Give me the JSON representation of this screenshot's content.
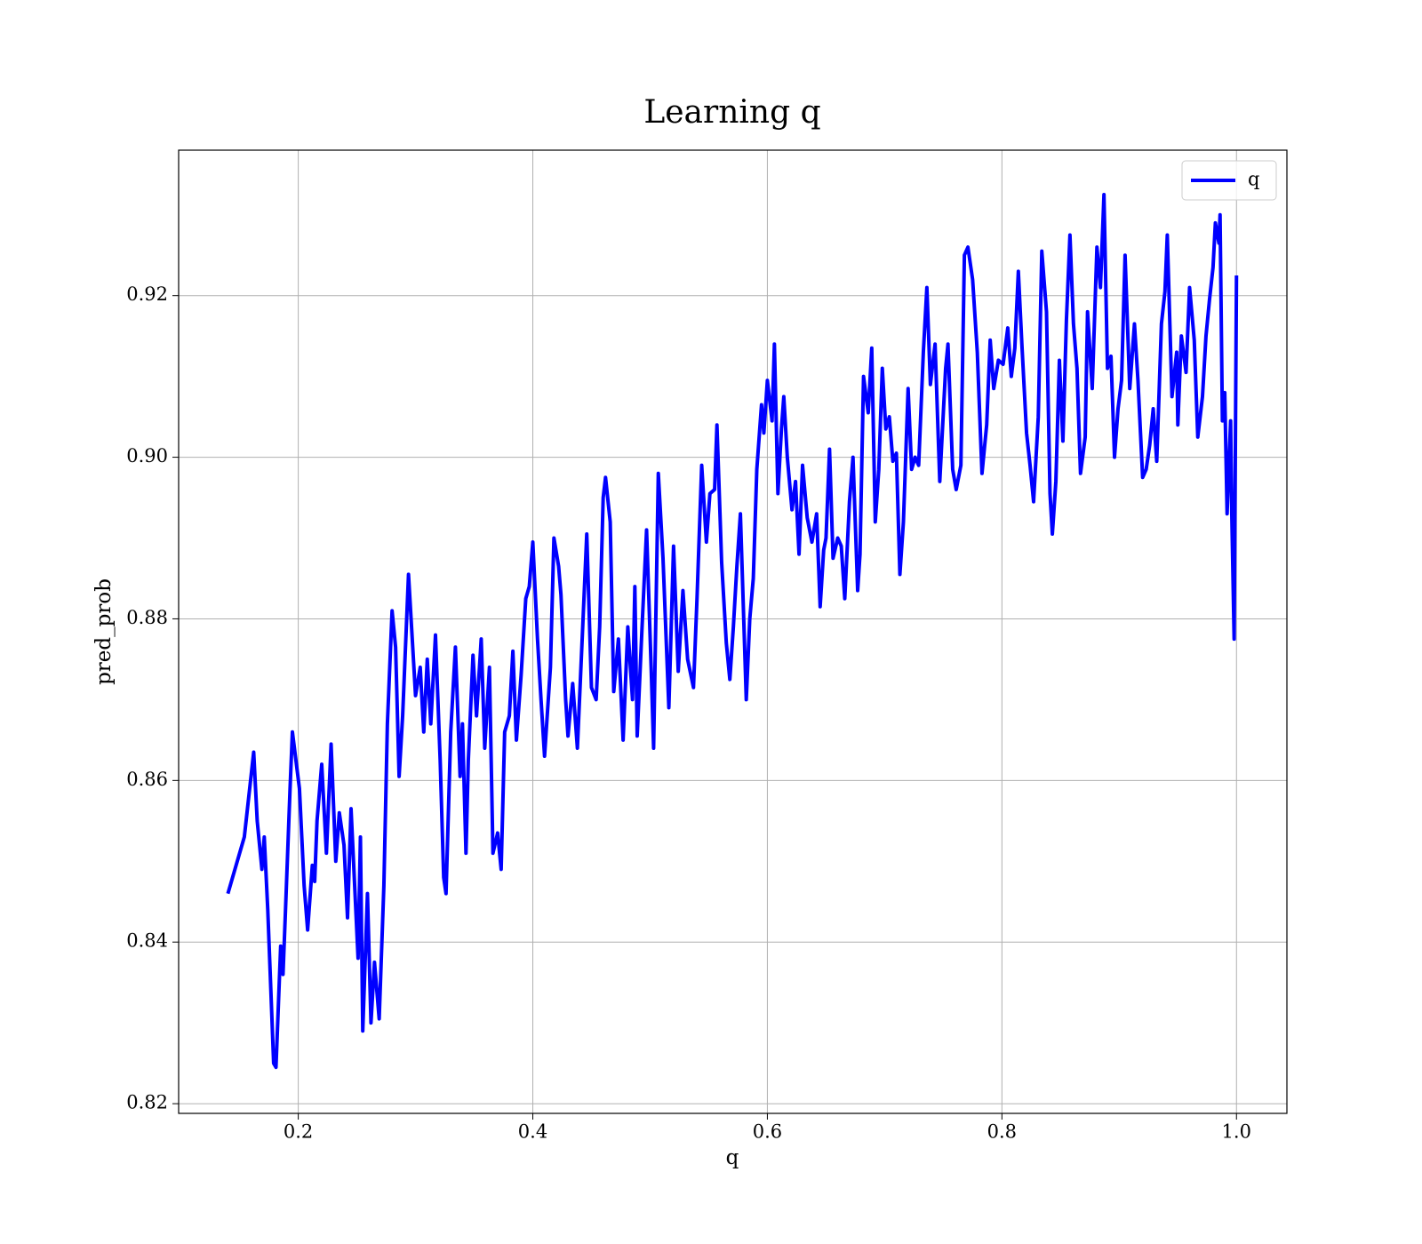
{
  "chart_data": {
    "type": "line",
    "title": "Learning q",
    "xlabel": "q",
    "ylabel": "pred_prob",
    "x": [
      0.14,
      0.154,
      0.162,
      0.165,
      0.169,
      0.171,
      0.174,
      0.179,
      0.181,
      0.185,
      0.187,
      0.189,
      0.193,
      0.195,
      0.201,
      0.205,
      0.208,
      0.212,
      0.214,
      0.216,
      0.22,
      0.224,
      0.228,
      0.232,
      0.235,
      0.239,
      0.242,
      0.245,
      0.251,
      0.253,
      0.255,
      0.259,
      0.262,
      0.265,
      0.269,
      0.273,
      0.276,
      0.28,
      0.283,
      0.286,
      0.289,
      0.294,
      0.296,
      0.3,
      0.304,
      0.307,
      0.31,
      0.313,
      0.317,
      0.321,
      0.324,
      0.326,
      0.33,
      0.334,
      0.338,
      0.34,
      0.343,
      0.345,
      0.349,
      0.352,
      0.356,
      0.359,
      0.363,
      0.366,
      0.37,
      0.373,
      0.376,
      0.38,
      0.383,
      0.386,
      0.39,
      0.394,
      0.397,
      0.4,
      0.404,
      0.407,
      0.41,
      0.415,
      0.418,
      0.422,
      0.424,
      0.428,
      0.43,
      0.434,
      0.438,
      0.443,
      0.446,
      0.45,
      0.454,
      0.457,
      0.46,
      0.462,
      0.466,
      0.469,
      0.473,
      0.477,
      0.481,
      0.485,
      0.487,
      0.489,
      0.493,
      0.497,
      0.501,
      0.503,
      0.507,
      0.511,
      0.516,
      0.52,
      0.524,
      0.528,
      0.532,
      0.537,
      0.54,
      0.544,
      0.548,
      0.551,
      0.555,
      0.557,
      0.561,
      0.565,
      0.568,
      0.571,
      0.574,
      0.577,
      0.582,
      0.585,
      0.588,
      0.591,
      0.595,
      0.597,
      0.6,
      0.604,
      0.606,
      0.609,
      0.612,
      0.614,
      0.617,
      0.621,
      0.624,
      0.627,
      0.63,
      0.634,
      0.638,
      0.642,
      0.645,
      0.648,
      0.65,
      0.653,
      0.656,
      0.66,
      0.663,
      0.666,
      0.67,
      0.673,
      0.677,
      0.679,
      0.682,
      0.686,
      0.689,
      0.692,
      0.695,
      0.698,
      0.701,
      0.704,
      0.707,
      0.71,
      0.713,
      0.716,
      0.72,
      0.723,
      0.726,
      0.729,
      0.733,
      0.736,
      0.739,
      0.743,
      0.747,
      0.752,
      0.754,
      0.758,
      0.761,
      0.765,
      0.768,
      0.771,
      0.775,
      0.779,
      0.783,
      0.787,
      0.79,
      0.793,
      0.797,
      0.801,
      0.805,
      0.808,
      0.811,
      0.814,
      0.817,
      0.821,
      0.824,
      0.827,
      0.831,
      0.834,
      0.838,
      0.841,
      0.843,
      0.846,
      0.849,
      0.852,
      0.855,
      0.858,
      0.861,
      0.864,
      0.867,
      0.871,
      0.873,
      0.877,
      0.881,
      0.884,
      0.887,
      0.89,
      0.893,
      0.896,
      0.899,
      0.902,
      0.905,
      0.909,
      0.913,
      0.916,
      0.92,
      0.923,
      0.926,
      0.929,
      0.932,
      0.936,
      0.939,
      0.941,
      0.945,
      0.949,
      0.95,
      0.953,
      0.957,
      0.96,
      0.964,
      0.967,
      0.971,
      0.974,
      0.977,
      0.98,
      0.982,
      0.985,
      0.986,
      0.988,
      0.99,
      0.992,
      0.995,
      0.996,
      0.998,
      1.0
    ],
    "series": [
      {
        "name": "q",
        "color": "blue",
        "values": [
          0.846,
          0.853,
          0.8635,
          0.855,
          0.849,
          0.853,
          0.844,
          0.825,
          0.8245,
          0.8395,
          0.836,
          0.8435,
          0.859,
          0.866,
          0.859,
          0.847,
          0.8415,
          0.8495,
          0.8475,
          0.855,
          0.862,
          0.851,
          0.8645,
          0.85,
          0.856,
          0.852,
          0.843,
          0.8565,
          0.838,
          0.853,
          0.829,
          0.846,
          0.83,
          0.8375,
          0.8305,
          0.847,
          0.867,
          0.881,
          0.8765,
          0.8605,
          0.868,
          0.8855,
          0.8805,
          0.8705,
          0.874,
          0.866,
          0.875,
          0.867,
          0.878,
          0.8625,
          0.848,
          0.846,
          0.866,
          0.8765,
          0.8605,
          0.867,
          0.851,
          0.8625,
          0.8755,
          0.868,
          0.8775,
          0.864,
          0.874,
          0.851,
          0.8535,
          0.849,
          0.866,
          0.868,
          0.876,
          0.865,
          0.873,
          0.8825,
          0.884,
          0.8895,
          0.8775,
          0.87,
          0.863,
          0.874,
          0.89,
          0.8865,
          0.883,
          0.87,
          0.8655,
          0.872,
          0.864,
          0.8805,
          0.8905,
          0.8715,
          0.87,
          0.879,
          0.895,
          0.8975,
          0.892,
          0.871,
          0.8775,
          0.865,
          0.879,
          0.87,
          0.884,
          0.8655,
          0.8785,
          0.891,
          0.8735,
          0.864,
          0.898,
          0.8875,
          0.869,
          0.889,
          0.8735,
          0.8835,
          0.875,
          0.8715,
          0.8825,
          0.899,
          0.8895,
          0.8955,
          0.896,
          0.904,
          0.887,
          0.877,
          0.8725,
          0.879,
          0.8865,
          0.893,
          0.87,
          0.88,
          0.885,
          0.8985,
          0.9065,
          0.903,
          0.9095,
          0.9045,
          0.914,
          0.8955,
          0.9035,
          0.9075,
          0.9,
          0.8935,
          0.897,
          0.888,
          0.899,
          0.8925,
          0.8895,
          0.893,
          0.8815,
          0.8885,
          0.89,
          0.901,
          0.8875,
          0.89,
          0.889,
          0.8825,
          0.8945,
          0.9,
          0.8835,
          0.888,
          0.91,
          0.9055,
          0.9135,
          0.892,
          0.8985,
          0.911,
          0.9035,
          0.905,
          0.8995,
          0.9005,
          0.8855,
          0.892,
          0.9085,
          0.8985,
          0.9,
          0.899,
          0.913,
          0.921,
          0.909,
          0.914,
          0.897,
          0.911,
          0.914,
          0.8985,
          0.896,
          0.899,
          0.925,
          0.926,
          0.922,
          0.913,
          0.898,
          0.904,
          0.9145,
          0.9085,
          0.912,
          0.9115,
          0.916,
          0.91,
          0.9135,
          0.923,
          0.914,
          0.903,
          0.899,
          0.8945,
          0.905,
          0.9255,
          0.918,
          0.8955,
          0.8905,
          0.897,
          0.912,
          0.902,
          0.917,
          0.9275,
          0.9165,
          0.911,
          0.898,
          0.9025,
          0.918,
          0.9085,
          0.926,
          0.921,
          0.9325,
          0.911,
          0.9125,
          0.9,
          0.906,
          0.9095,
          0.925,
          0.9085,
          0.9165,
          0.9095,
          0.8975,
          0.8985,
          0.9015,
          0.906,
          0.8995,
          0.9165,
          0.9205,
          0.9275,
          0.9075,
          0.913,
          0.904,
          0.915,
          0.9105,
          0.921,
          0.9145,
          0.9025,
          0.9075,
          0.915,
          0.9195,
          0.9235,
          0.929,
          0.9265,
          0.93,
          0.9045,
          0.908,
          0.893,
          0.9045,
          0.893,
          0.8775,
          0.9225
        ]
      }
    ],
    "xlim": [
      0.098,
      1.043
    ],
    "ylim": [
      0.8188,
      0.938
    ],
    "xticks": [
      0.2,
      0.4,
      0.6,
      0.8,
      {
        "value": 1,
        "label": "1.0"
      }
    ],
    "yticks": [
      0.82,
      0.84,
      0.86,
      0.88,
      {
        "value": 0.9,
        "label": "0.90"
      },
      0.92
    ],
    "grid": true,
    "legend": "upper right"
  }
}
